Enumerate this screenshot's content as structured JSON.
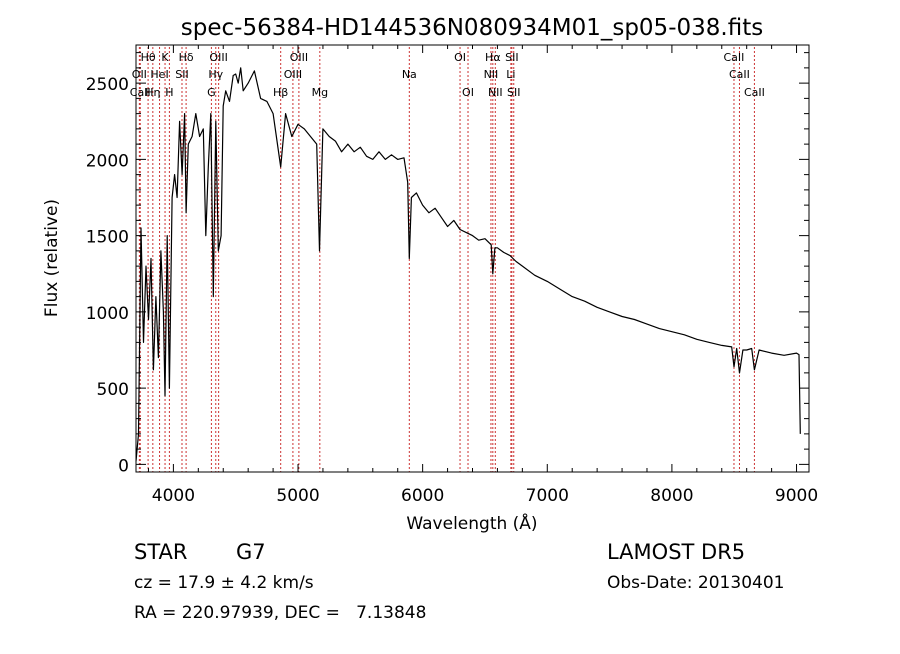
{
  "chart_data": {
    "type": "line",
    "title": "spec-56384-HD144536N080934M01_sp05-038.fits",
    "xlabel": "Wavelength (Å)",
    "ylabel": "Flux (relative)",
    "xlim": [
      3700,
      9100
    ],
    "ylim": [
      -50,
      2750
    ],
    "x_ticks": [
      4000,
      5000,
      6000,
      7000,
      8000,
      9000
    ],
    "y_ticks": [
      0,
      500,
      1000,
      1500,
      2000,
      2500
    ],
    "grid": false,
    "series": [
      {
        "x": [
          3700,
          3720,
          3740,
          3760,
          3780,
          3800,
          3820,
          3840,
          3860,
          3880,
          3900,
          3920,
          3933,
          3950,
          3968,
          3990,
          4010,
          4030,
          4050,
          4070,
          4090,
          4102,
          4120,
          4150,
          4180,
          4210,
          4240,
          4260,
          4280,
          4300,
          4320,
          4340,
          4360,
          4383,
          4400,
          4420,
          4450,
          4480,
          4500,
          4520,
          4540,
          4560,
          4600,
          4650,
          4700,
          4750,
          4800,
          4861,
          4900,
          4950,
          5000,
          5050,
          5100,
          5150,
          5172,
          5200,
          5250,
          5300,
          5350,
          5400,
          5450,
          5500,
          5550,
          5600,
          5650,
          5700,
          5750,
          5800,
          5850,
          5880,
          5893,
          5910,
          5950,
          6000,
          6050,
          6100,
          6150,
          6200,
          6250,
          6300,
          6350,
          6400,
          6450,
          6500,
          6550,
          6563,
          6580,
          6600,
          6650,
          6700,
          6750,
          6800,
          6900,
          7000,
          7100,
          7200,
          7300,
          7400,
          7500,
          7600,
          7700,
          7800,
          7900,
          8000,
          8100,
          8200,
          8300,
          8400,
          8480,
          8498,
          8520,
          8542,
          8570,
          8600,
          8640,
          8662,
          8700,
          8800,
          8900,
          9000,
          9020,
          9030
        ],
        "y": [
          20,
          200,
          1550,
          800,
          1300,
          950,
          1350,
          620,
          1100,
          700,
          1400,
          1000,
          450,
          1500,
          500,
          1750,
          1900,
          1750,
          2250,
          1900,
          2300,
          1650,
          2100,
          2150,
          2300,
          2150,
          2200,
          1500,
          1950,
          2300,
          1100,
          2250,
          1400,
          1500,
          2350,
          2450,
          2380,
          2550,
          2560,
          2500,
          2600,
          2450,
          2500,
          2580,
          2400,
          2380,
          2300,
          1950,
          2300,
          2150,
          2230,
          2200,
          2150,
          2100,
          1400,
          2200,
          2150,
          2120,
          2050,
          2100,
          2050,
          2080,
          2020,
          2000,
          2050,
          2000,
          2030,
          2000,
          2010,
          1850,
          1350,
          1750,
          1780,
          1700,
          1650,
          1680,
          1620,
          1560,
          1600,
          1540,
          1520,
          1500,
          1470,
          1480,
          1440,
          1250,
          1420,
          1420,
          1390,
          1370,
          1330,
          1300,
          1240,
          1200,
          1150,
          1100,
          1070,
          1030,
          1000,
          970,
          950,
          920,
          890,
          870,
          850,
          820,
          800,
          780,
          770,
          640,
          760,
          600,
          750,
          750,
          760,
          620,
          750,
          730,
          715,
          730,
          720,
          200
        ]
      }
    ],
    "spectral_lines": [
      {
        "name": "Hθ",
        "wavelength": 3797,
        "row": 1
      },
      {
        "name": "OII",
        "wavelength": 3727,
        "row": 2
      },
      {
        "name": "CaII",
        "wavelength": 3734,
        "row": 3
      },
      {
        "name": "HeI",
        "wavelength": 3889,
        "row": 2
      },
      {
        "name": "Hη",
        "wavelength": 3835,
        "row": 3
      },
      {
        "name": "K",
        "wavelength": 3933,
        "row": 1
      },
      {
        "name": "H",
        "wavelength": 3968,
        "row": 3
      },
      {
        "name": "SII",
        "wavelength": 4069,
        "row": 2
      },
      {
        "name": "Hδ",
        "wavelength": 4102,
        "row": 1
      },
      {
        "name": "OIII",
        "wavelength": 4363,
        "row": 1
      },
      {
        "name": "Hγ",
        "wavelength": 4340,
        "row": 2
      },
      {
        "name": "G",
        "wavelength": 4305,
        "row": 3
      },
      {
        "name": "OIII",
        "wavelength": 5007,
        "row": 1
      },
      {
        "name": "OIII",
        "wavelength": 4959,
        "row": 2
      },
      {
        "name": "Hβ",
        "wavelength": 4861,
        "row": 3
      },
      {
        "name": "Mg",
        "wavelength": 5175,
        "row": 3
      },
      {
        "name": "Na",
        "wavelength": 5893,
        "row": 2
      },
      {
        "name": "OI",
        "wavelength": 6300,
        "row": 1
      },
      {
        "name": "OI",
        "wavelength": 6364,
        "row": 3
      },
      {
        "name": "Hα",
        "wavelength": 6563,
        "row": 1
      },
      {
        "name": "NII",
        "wavelength": 6548,
        "row": 2
      },
      {
        "name": "NII",
        "wavelength": 6583,
        "row": 3
      },
      {
        "name": "SII",
        "wavelength": 6716,
        "row": 1
      },
      {
        "name": "Li",
        "wavelength": 6708,
        "row": 2
      },
      {
        "name": "SII",
        "wavelength": 6731,
        "row": 3
      },
      {
        "name": "CaII",
        "wavelength": 8498,
        "row": 1
      },
      {
        "name": "CaII",
        "wavelength": 8542,
        "row": 2
      },
      {
        "name": "CaII",
        "wavelength": 8662,
        "row": 3
      }
    ]
  },
  "info": {
    "object_class": "STAR",
    "subclass": "G7",
    "survey": "LAMOST DR5",
    "redshift": "cz = 17.9 ± 4.2 km/s",
    "obs_date": "Obs-Date: 20130401",
    "coords": "RA = 220.97939, DEC =   7.13848"
  },
  "colors": {
    "line_markers": "#cc3333",
    "spectrum": "#000000"
  }
}
